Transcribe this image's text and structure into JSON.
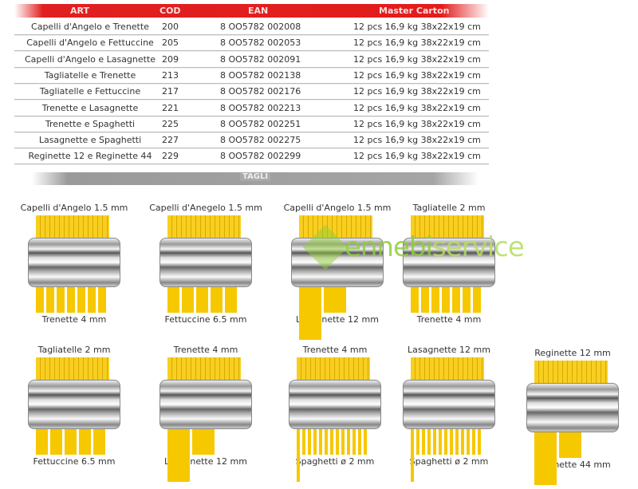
{
  "table": {
    "headers": [
      "ART",
      "COD",
      "EAN",
      "Master Carton"
    ],
    "rows": [
      [
        "Capelli d'Angelo e Trenette",
        "200",
        "8 OO5782 002008",
        "12 pcs 16,9 kg 38x22x19 cm"
      ],
      [
        "Capelli d'Angelo e Fettuccine",
        "205",
        "8 OO5782 002053",
        "12 pcs 16,9 kg 38x22x19 cm"
      ],
      [
        "Capelli d'Angelo e Lasagnette",
        "209",
        "8 OO5782 002091",
        "12 pcs 16,9 kg 38x22x19 cm"
      ],
      [
        "Tagliatelle e Trenette",
        "213",
        "8 OO5782 002138",
        "12 pcs 16,9 kg 38x22x19 cm"
      ],
      [
        "Tagliatelle e Fettuccine",
        "217",
        "8 OO5782 002176",
        "12 pcs 16,9 kg 38x22x19 cm"
      ],
      [
        "Trenette e Lasagnette",
        "221",
        "8 OO5782 002213",
        "12 pcs 16,9 kg 38x22x19 cm"
      ],
      [
        "Trenette e Spaghetti",
        "225",
        "8 OO5782 002251",
        "12 pcs 16,9 kg 38x22x19 cm"
      ],
      [
        "Lasagnette e Spaghetti",
        "227",
        "8 OO5782 002275",
        "12 pcs 16,9 kg 38x22x19 cm"
      ],
      [
        "Reginette 12 e Reginette 44",
        "229",
        "8 OO5782 002299",
        "12 pcs 16,9 kg 38x22x19 cm"
      ]
    ]
  },
  "tagli": "TAGLI",
  "cutters": [
    {
      "top": "Capelli d'Angelo 1.5 mm",
      "bottom": "Trenette 4 mm"
    },
    {
      "top": "Capelli d'Anegelo 1.5 mm",
      "bottom": "Fettuccine 6.5 mm"
    },
    {
      "top": "Capelli d'Angelo 1.5 mm",
      "bottom": "Lasagnette 12 mm"
    },
    {
      "top": "Tagliatelle 2 mm",
      "bottom": "Trenette 4 mm"
    },
    {
      "top": "Tagliatelle 2 mm",
      "bottom": "Fettuccine 6.5 mm"
    },
    {
      "top": "Trenette 4 mm",
      "bottom": "Lasagnette 12 mm"
    },
    {
      "top": "Trenette 4 mm",
      "bottom": "Spaghetti ø 2 mm"
    },
    {
      "top": "Lasagnette 12 mm",
      "bottom": "Spaghetti ø 2 mm"
    },
    {
      "top": "Reginette 12 mm",
      "bottom": "Reginette 44 mm"
    }
  ],
  "watermark": {
    "a": "ennebi",
    "b": "service"
  }
}
